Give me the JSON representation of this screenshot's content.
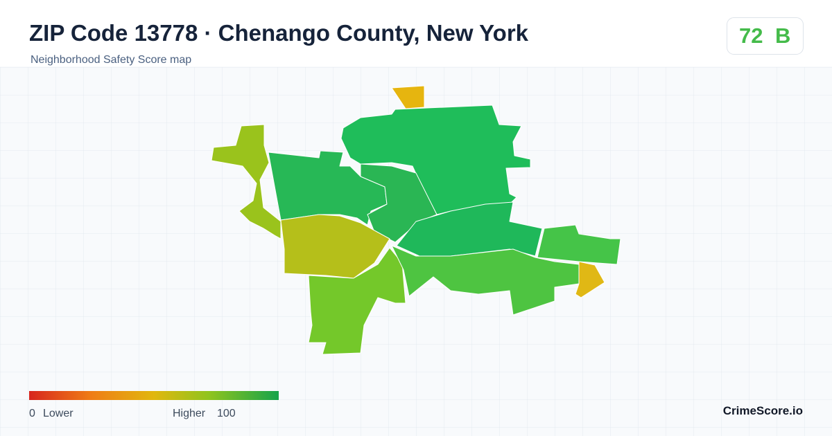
{
  "header": {
    "title": "ZIP Code 13778 · Chenango County, New York",
    "subtitle": "Neighborhood Safety Score map"
  },
  "score": {
    "value": 72,
    "grade": "B"
  },
  "legend": {
    "min": 0,
    "min_label": "Lower",
    "max_label": "Higher",
    "max": 100
  },
  "brand": "CrimeScore.io"
}
